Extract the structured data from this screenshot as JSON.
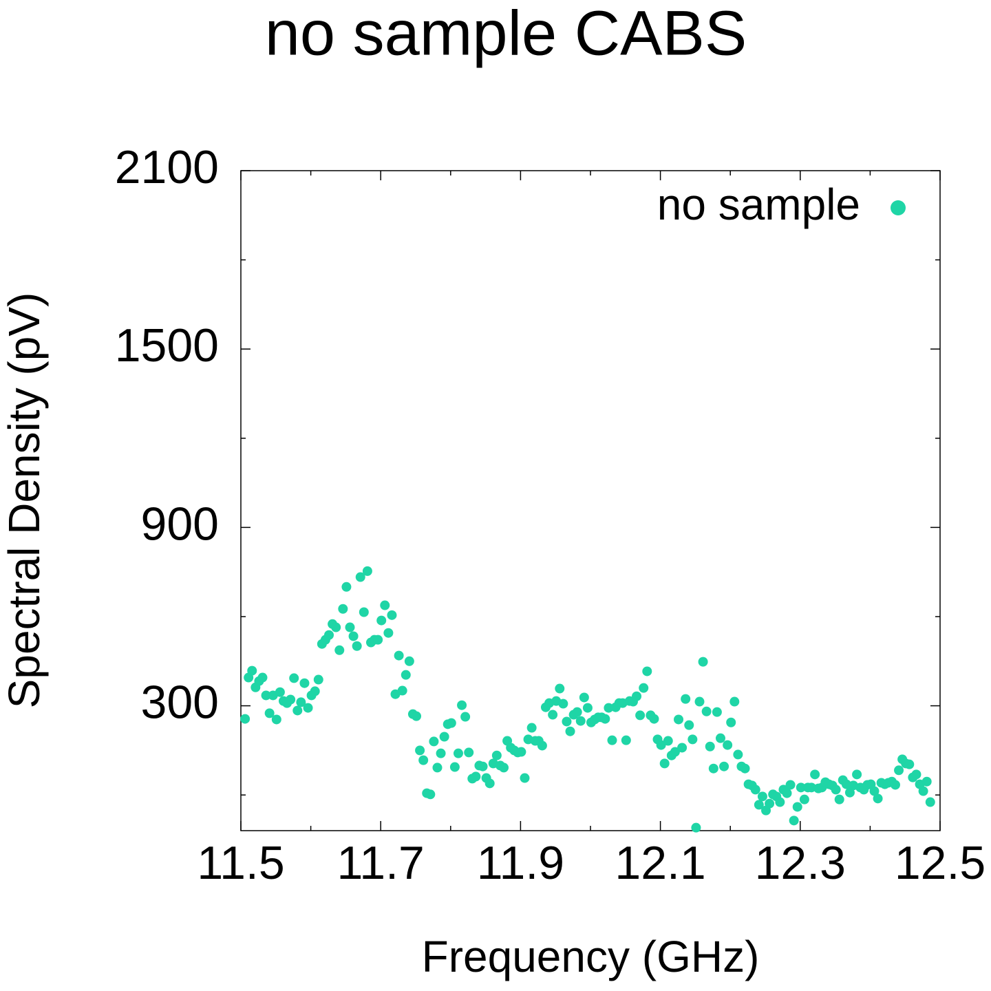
{
  "chart_data": {
    "type": "scatter",
    "title": "no sample CABS",
    "x_label": "Frequency (GHz)",
    "y_label": "Spectral Density (pV)",
    "legend": "top-right",
    "xlim": [
      11.5,
      12.5
    ],
    "xticks": [
      11.5,
      11.7,
      11.9,
      12.1,
      12.3,
      12.5
    ],
    "xminorticks": [
      11.6,
      11.8,
      12.0,
      12.2,
      12.4
    ],
    "ylim": [
      -120,
      2100
    ],
    "yticks": [
      300,
      900,
      1500,
      2100
    ],
    "yminorticks": [
      0,
      600,
      1200,
      1800
    ],
    "series": [
      {
        "name": "no sample",
        "color": "#1fd5a6",
        "x": [
          11.506,
          11.511,
          11.516,
          11.521,
          11.526,
          11.531,
          11.536,
          11.541,
          11.546,
          11.551,
          11.556,
          11.561,
          11.566,
          11.571,
          11.576,
          11.581,
          11.586,
          11.591,
          11.596,
          11.601,
          11.606,
          11.611,
          11.616,
          11.621,
          11.626,
          11.631,
          11.636,
          11.641,
          11.646,
          11.651,
          11.656,
          11.661,
          11.666,
          11.671,
          11.676,
          11.681,
          11.686,
          11.691,
          11.696,
          11.701,
          11.706,
          11.711,
          11.716,
          11.721,
          11.726,
          11.731,
          11.736,
          11.741,
          11.746,
          11.751,
          11.756,
          11.761,
          11.766,
          11.771,
          11.776,
          11.781,
          11.786,
          11.791,
          11.796,
          11.801,
          11.806,
          11.811,
          11.816,
          11.821,
          11.826,
          11.831,
          11.836,
          11.841,
          11.846,
          11.851,
          11.856,
          11.861,
          11.866,
          11.871,
          11.876,
          11.881,
          11.886,
          11.891,
          11.896,
          11.901,
          11.906,
          11.911,
          11.916,
          11.921,
          11.926,
          11.931,
          11.936,
          11.941,
          11.946,
          11.951,
          11.956,
          11.961,
          11.966,
          11.971,
          11.976,
          11.981,
          11.986,
          11.991,
          11.996,
          12.001,
          12.006,
          12.011,
          12.016,
          12.021,
          12.026,
          12.031,
          12.036,
          12.041,
          12.046,
          12.051,
          12.056,
          12.061,
          12.066,
          12.071,
          12.076,
          12.081,
          12.086,
          12.091,
          12.096,
          12.101,
          12.106,
          12.111,
          12.116,
          12.121,
          12.126,
          12.131,
          12.136,
          12.141,
          12.146,
          12.151,
          12.156,
          12.161,
          12.166,
          12.171,
          12.176,
          12.181,
          12.186,
          12.191,
          12.196,
          12.201,
          12.206,
          12.211,
          12.216,
          12.221,
          12.226,
          12.231,
          12.236,
          12.241,
          12.246,
          12.251,
          12.256,
          12.261,
          12.266,
          12.271,
          12.276,
          12.281,
          12.286,
          12.291,
          12.296,
          12.301,
          12.306,
          12.311,
          12.316,
          12.321,
          12.326,
          12.331,
          12.336,
          12.341,
          12.346,
          12.351,
          12.356,
          12.361,
          12.366,
          12.371,
          12.376,
          12.381,
          12.386,
          12.391,
          12.396,
          12.401,
          12.406,
          12.411,
          12.416,
          12.421,
          12.426,
          12.431,
          12.436,
          12.441,
          12.446,
          12.451,
          12.456,
          12.461,
          12.466,
          12.471,
          12.476,
          12.481,
          12.486
        ],
        "values": [
          256,
          395,
          418,
          362,
          383,
          395,
          335,
          275,
          335,
          254,
          346,
          316,
          309,
          321,
          393,
          284,
          312,
          376,
          293,
          335,
          349,
          388,
          508,
          522,
          538,
          575,
          564,
          487,
          626,
          700,
          564,
          534,
          501,
          733,
          615,
          753,
          513,
          522,
          522,
          587,
          638,
          545,
          605,
          339,
          469,
          351,
          404,
          450,
          272,
          265,
          150,
          117,
          6,
          2,
          180,
          92,
          140,
          196,
          238,
          242,
          94,
          140,
          302,
          263,
          143,
          55,
          62,
          99,
          96,
          57,
          39,
          106,
          133,
          99,
          92,
          182,
          159,
          150,
          143,
          145,
          57,
          187,
          226,
          182,
          182,
          166,
          295,
          309,
          270,
          316,
          358,
          307,
          247,
          214,
          270,
          279,
          249,
          328,
          293,
          244,
          254,
          261,
          261,
          256,
          293,
          184,
          295,
          309,
          309,
          184,
          316,
          314,
          332,
          268,
          360,
          416,
          268,
          256,
          187,
          168,
          106,
          182,
          133,
          145,
          254,
          159,
          323,
          235,
          187,
          -110,
          314,
          448,
          281,
          163,
          89,
          279,
          191,
          96,
          168,
          244,
          314,
          136,
          96,
          89,
          36,
          32,
          18,
          -33,
          -5,
          -52,
          -29,
          2,
          -5,
          -24,
          18,
          6,
          34,
          -86,
          -40,
          25,
          -15,
          25,
          25,
          69,
          22,
          25,
          43,
          36,
          32,
          18,
          -15,
          50,
          36,
          8,
          32,
          69,
          25,
          18,
          34,
          36,
          13,
          -12,
          41,
          36,
          41,
          45,
          34,
          83,
          120,
          106,
          103,
          59,
          69,
          36,
          13,
          45,
          -24
        ]
      }
    ]
  }
}
